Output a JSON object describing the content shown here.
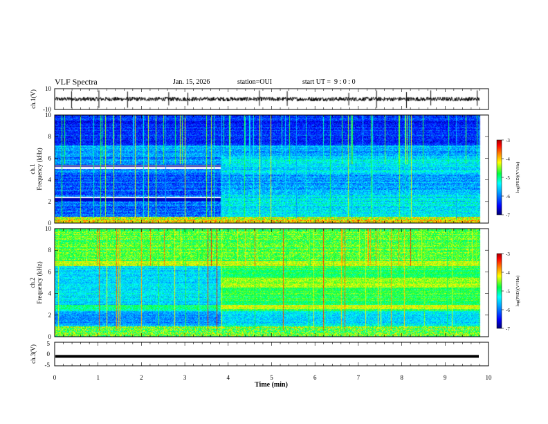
{
  "header": {
    "title": "VLF Spectra",
    "date": "Jan. 15, 2026",
    "station": "station=OUI",
    "start": "start UT =  9 : 0 : 0"
  },
  "chart_data": [
    {
      "type": "line",
      "name": "ch1-waveform",
      "ylabel": "ch.1(V)",
      "ylim": [
        -10,
        10
      ],
      "yticks": [
        "10",
        "-10"
      ],
      "xlim": [
        0,
        10
      ],
      "baseline": 0,
      "noise_amplitude": 2,
      "spikes": [
        0.39,
        1.02,
        1.68,
        2.63,
        3.07,
        4.72,
        5.36,
        6.78,
        7.42,
        8.11,
        8.67,
        9.74
      ]
    },
    {
      "type": "heatmap",
      "name": "ch1-spectrogram",
      "ylabel": "ch.1\nFrequency (kHz)",
      "xlim": [
        0,
        10
      ],
      "ylim": [
        0,
        10
      ],
      "yticks": [
        "0",
        "2",
        "4",
        "6",
        "8",
        "10"
      ],
      "transition_min": 3.83,
      "colorbar": {
        "label": "log(PSD)(V²/Hz)",
        "range": [
          -7,
          -3
        ],
        "ticks": [
          "-3",
          "-4",
          "-5",
          "-6",
          "-7"
        ]
      }
    },
    {
      "type": "heatmap",
      "name": "ch2-spectrogram",
      "ylabel": "ch.2\nFrequency (kHz)",
      "xlim": [
        0,
        10
      ],
      "ylim": [
        0,
        10
      ],
      "yticks": [
        "0",
        "2",
        "4",
        "6",
        "8",
        "10"
      ],
      "transition_min": 3.83,
      "colorbar": {
        "label": "log(PSD)(V²/Hz)",
        "range": [
          -7,
          -3
        ],
        "ticks": [
          "-3",
          "-4",
          "-5",
          "-6",
          "-7"
        ]
      }
    },
    {
      "type": "line",
      "name": "ch3-waveform",
      "ylabel": "ch.3(V)",
      "ylim": [
        -5,
        5
      ],
      "yticks": [
        "5",
        "0",
        "-5"
      ],
      "xlim": [
        0,
        10
      ],
      "baseline": -1.0
    }
  ],
  "xaxis": {
    "label": "Time (min)",
    "ticks": [
      "0",
      "1",
      "2",
      "3",
      "4",
      "5",
      "6",
      "7",
      "8",
      "9",
      "10"
    ]
  },
  "colors": {
    "frame": "#000000",
    "colormap": [
      "#000070",
      "#0000ff",
      "#00a0ff",
      "#00ffff",
      "#00ff40",
      "#ffff00",
      "#ff8000",
      "#ff0000",
      "#a00000"
    ]
  }
}
